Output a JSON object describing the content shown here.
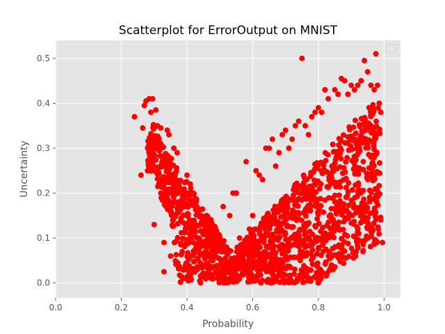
{
  "chart_data": {
    "type": "scatter",
    "title": "Scatterplot for ErrorOutput on MNIST",
    "xlabel": "Probability",
    "ylabel": "Uncertainty",
    "xlim": [
      0.0,
      1.05
    ],
    "ylim": [
      -0.033,
      0.54
    ],
    "xticks": [
      0.0,
      0.2,
      0.4,
      0.6,
      0.8,
      1.0
    ],
    "xtick_labels": [
      "0.0",
      "0.2",
      "0.4",
      "0.6",
      "0.8",
      "1.0"
    ],
    "yticks": [
      0.0,
      0.1,
      0.2,
      0.3,
      0.4,
      0.5
    ],
    "ytick_labels": [
      "0.0",
      "0.1",
      "0.2",
      "0.3",
      "0.4",
      "0.5"
    ],
    "grid": true,
    "style": "ggplot",
    "background_color": "#E5E5E5",
    "grid_color": "#FFFFFF",
    "marker_color": "#FF0000",
    "legend": {
      "placement": "top-right",
      "entries": []
    },
    "series": [
      {
        "color": "#FF0000",
        "points": [
          [
            0.24,
            0.37
          ],
          [
            0.26,
            0.24
          ],
          [
            0.265,
            0.345
          ],
          [
            0.27,
            0.395
          ],
          [
            0.275,
            0.405
          ],
          [
            0.28,
            0.25
          ],
          [
            0.285,
            0.41
          ],
          [
            0.29,
            0.38
          ],
          [
            0.295,
            0.41
          ],
          [
            0.3,
            0.35
          ],
          [
            0.305,
            0.385
          ],
          [
            0.3,
            0.13
          ],
          [
            0.31,
            0.35
          ],
          [
            0.32,
            0.345
          ],
          [
            0.33,
            0.025
          ],
          [
            0.34,
            0.34
          ],
          [
            0.345,
            0.33
          ],
          [
            0.33,
            0.09
          ],
          [
            0.35,
            0.06
          ],
          [
            0.36,
            0.3
          ],
          [
            0.37,
            0.29
          ],
          [
            0.38,
            0.002
          ],
          [
            0.39,
            0.01
          ],
          [
            0.4,
            0.24
          ],
          [
            0.41,
            0.22
          ],
          [
            0.42,
            0.2
          ],
          [
            0.43,
            0.17
          ],
          [
            0.44,
            0.15
          ],
          [
            0.45,
            0.13
          ],
          [
            0.46,
            0.12
          ],
          [
            0.47,
            0.1
          ],
          [
            0.48,
            0.09
          ],
          [
            0.49,
            0.08
          ],
          [
            0.5,
            0.1
          ],
          [
            0.51,
            0.17
          ],
          [
            0.52,
            0.08
          ],
          [
            0.53,
            0.15
          ],
          [
            0.54,
            0.2
          ],
          [
            0.55,
            0.2
          ],
          [
            0.56,
            0.1
          ],
          [
            0.57,
            0.04
          ],
          [
            0.58,
            0.27
          ],
          [
            0.59,
            0.12
          ],
          [
            0.6,
            0.15
          ],
          [
            0.61,
            0.25
          ],
          [
            0.62,
            0.24
          ],
          [
            0.63,
            0.23
          ],
          [
            0.64,
            0.3
          ],
          [
            0.65,
            0.3
          ],
          [
            0.66,
            0.32
          ],
          [
            0.67,
            0.26
          ],
          [
            0.68,
            0.29
          ],
          [
            0.69,
            0.33
          ],
          [
            0.7,
            0.34
          ],
          [
            0.71,
            0.3
          ],
          [
            0.72,
            0.32
          ],
          [
            0.73,
            0.35
          ],
          [
            0.74,
            0.36
          ],
          [
            0.745,
            0.05
          ],
          [
            0.75,
            0.5
          ],
          [
            0.76,
            0.35
          ],
          [
            0.77,
            0.33
          ],
          [
            0.78,
            0.37
          ],
          [
            0.79,
            0.38
          ],
          [
            0.8,
            0.39
          ],
          [
            0.81,
            0.38
          ],
          [
            0.82,
            0.43
          ],
          [
            0.83,
            0.41
          ],
          [
            0.84,
            0.04
          ],
          [
            0.85,
            0.43
          ],
          [
            0.86,
            0.42
          ],
          [
            0.87,
            0.455
          ],
          [
            0.88,
            0.45
          ],
          [
            0.89,
            0.42
          ],
          [
            0.9,
            0.44
          ],
          [
            0.91,
            0.43
          ],
          [
            0.92,
            0.44
          ],
          [
            0.93,
            0.45
          ],
          [
            0.94,
            0.495
          ],
          [
            0.95,
            0.47
          ],
          [
            0.96,
            0.44
          ],
          [
            0.97,
            0.43
          ],
          [
            0.975,
            0.51
          ],
          [
            0.98,
            0.44
          ],
          [
            0.985,
            0.4
          ],
          [
            0.99,
            0.38
          ],
          [
            0.995,
            0.09
          ]
        ]
      }
    ]
  }
}
